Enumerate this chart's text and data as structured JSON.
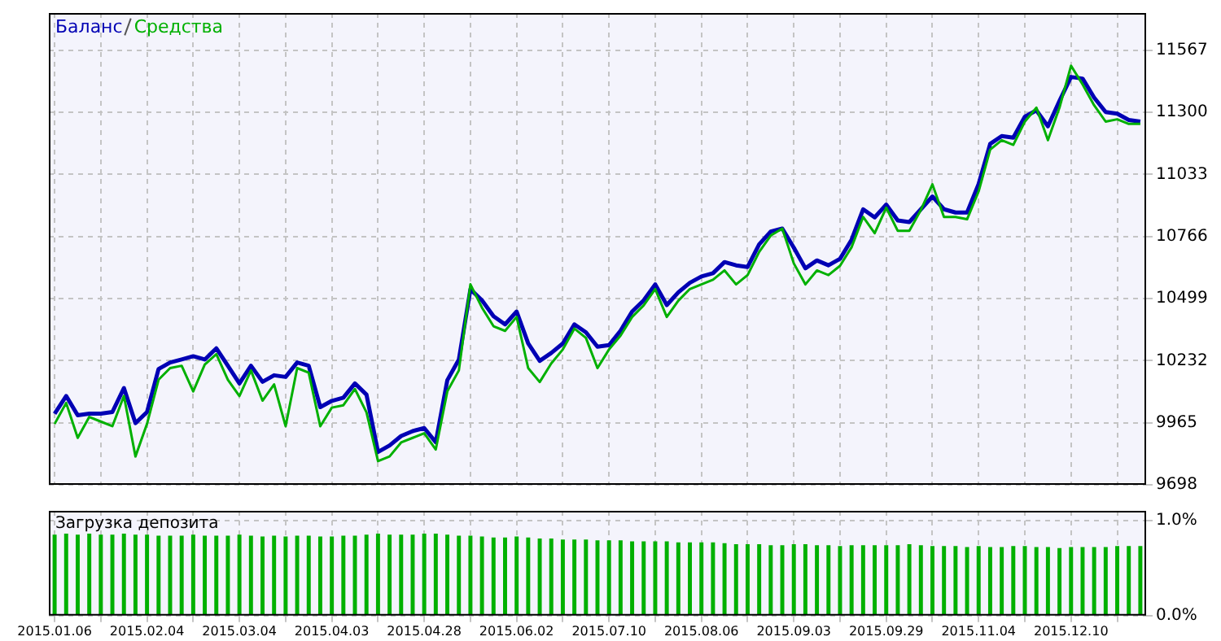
{
  "chart_data": [
    {
      "type": "line",
      "legend": "top left",
      "grid": true,
      "tick_labels": "y",
      "categories": [
        "2015.01.06",
        null,
        null,
        null,
        null,
        null,
        null,
        null,
        "2015.02.04",
        null,
        null,
        null,
        null,
        null,
        null,
        null,
        "2015.03.04",
        null,
        null,
        null,
        null,
        null,
        null,
        null,
        "2015.04.03",
        null,
        null,
        null,
        null,
        null,
        null,
        null,
        "2015.04.28",
        null,
        null,
        null,
        null,
        null,
        null,
        null,
        "2015.06.02",
        null,
        null,
        null,
        null,
        null,
        null,
        null,
        "2015.07.10",
        null,
        null,
        null,
        null,
        null,
        null,
        null,
        "2015.08.06",
        null,
        null,
        null,
        null,
        null,
        null,
        null,
        "2015.09.03",
        null,
        null,
        null,
        null,
        null,
        null,
        null,
        "2015.09.29",
        null,
        null,
        null,
        null,
        null,
        null,
        null,
        "2015.11.04",
        null,
        null,
        null,
        null,
        null,
        null,
        null,
        "2015.12.10",
        null,
        null,
        null,
        null,
        null,
        null
      ],
      "ylim": [
        9698,
        11727
      ],
      "yticks": [
        9698,
        9965,
        10232,
        10499,
        10766,
        11033,
        11300,
        11567
      ],
      "series": [
        {
          "name": "Средства",
          "color": "#00b000",
          "values": [
            9960,
            10050,
            9900,
            9990,
            9970,
            9950,
            10080,
            9820,
            9960,
            10150,
            10200,
            10210,
            10100,
            10215,
            10260,
            10150,
            10080,
            10190,
            10060,
            10130,
            9950,
            10200,
            10180,
            9950,
            10030,
            10040,
            10110,
            10010,
            9800,
            9820,
            9880,
            9900,
            9920,
            9850,
            10100,
            10190,
            10560,
            10460,
            10380,
            10360,
            10420,
            10200,
            10140,
            10220,
            10280,
            10370,
            10330,
            10200,
            10280,
            10340,
            10420,
            10470,
            10540,
            10420,
            10490,
            10540,
            10560,
            10580,
            10620,
            10560,
            10600,
            10700,
            10770,
            10800,
            10650,
            10560,
            10620,
            10600,
            10640,
            10720,
            10850,
            10780,
            10890,
            10790,
            10790,
            10880,
            10990,
            10850,
            10850,
            10840,
            10960,
            11140,
            11180,
            11160,
            11260,
            11320,
            11180,
            11320,
            11500,
            11420,
            11330,
            11260,
            11270,
            11250,
            11250
          ]
        },
        {
          "name": "Баланс",
          "color": "#0000b4",
          "values": [
            10004,
            10080,
            9997,
            10004,
            10004,
            10011,
            10114,
            9963,
            10011,
            10196,
            10224,
            10237,
            10251,
            10237,
            10285,
            10210,
            10134,
            10210,
            10141,
            10169,
            10162,
            10224,
            10210,
            10032,
            10059,
            10073,
            10134,
            10086,
            9839,
            9867,
            9908,
            9929,
            9942,
            9881,
            10148,
            10237,
            10539,
            10491,
            10423,
            10388,
            10443,
            10306,
            10231,
            10265,
            10306,
            10388,
            10354,
            10292,
            10299,
            10361,
            10443,
            10491,
            10560,
            10471,
            10526,
            10567,
            10594,
            10608,
            10656,
            10642,
            10635,
            10732,
            10787,
            10800,
            10718,
            10629,
            10663,
            10642,
            10670,
            10752,
            10883,
            10848,
            10903,
            10835,
            10828,
            10883,
            10938,
            10883,
            10869,
            10869,
            10992,
            11164,
            11198,
            11191,
            11281,
            11308,
            11240,
            11349,
            11452,
            11445,
            11363,
            11301,
            11294,
            11267,
            11260
          ]
        }
      ]
    },
    {
      "type": "bar",
      "title": "Загрузка депозита",
      "grid": true,
      "color": "#00b000",
      "categories": [
        "2015.01.06",
        null,
        null,
        null,
        null,
        null,
        null,
        null,
        "2015.02.04",
        null,
        null,
        null,
        null,
        null,
        null,
        null,
        "2015.03.04",
        null,
        null,
        null,
        null,
        null,
        null,
        null,
        "2015.04.03",
        null,
        null,
        null,
        null,
        null,
        null,
        null,
        "2015.04.28",
        null,
        null,
        null,
        null,
        null,
        null,
        null,
        "2015.06.02",
        null,
        null,
        null,
        null,
        null,
        null,
        null,
        "2015.07.10",
        null,
        null,
        null,
        null,
        null,
        null,
        null,
        "2015.08.06",
        null,
        null,
        null,
        null,
        null,
        null,
        null,
        "2015.09.03",
        null,
        null,
        null,
        null,
        null,
        null,
        null,
        "2015.09.29",
        null,
        null,
        null,
        null,
        null,
        null,
        null,
        "2015.11.04",
        null,
        null,
        null,
        null,
        null,
        null,
        null,
        "2015.12.10",
        null,
        null,
        null,
        null,
        null,
        null
      ],
      "ylim": [
        0,
        1.1
      ],
      "yticks": [
        {
          "value": 0,
          "label": "0.0%"
        },
        {
          "value": 1,
          "label": "1.0%"
        }
      ],
      "values": [
        0.85,
        0.86,
        0.85,
        0.86,
        0.85,
        0.85,
        0.86,
        0.85,
        0.85,
        0.84,
        0.84,
        0.84,
        0.85,
        0.84,
        0.84,
        0.84,
        0.85,
        0.84,
        0.83,
        0.84,
        0.83,
        0.84,
        0.84,
        0.83,
        0.83,
        0.84,
        0.84,
        0.85,
        0.86,
        0.85,
        0.85,
        0.85,
        0.86,
        0.86,
        0.85,
        0.84,
        0.84,
        0.83,
        0.82,
        0.82,
        0.83,
        0.82,
        0.81,
        0.81,
        0.8,
        0.8,
        0.8,
        0.79,
        0.79,
        0.79,
        0.78,
        0.78,
        0.78,
        0.78,
        0.77,
        0.77,
        0.77,
        0.77,
        0.76,
        0.75,
        0.75,
        0.75,
        0.74,
        0.74,
        0.75,
        0.75,
        0.74,
        0.74,
        0.73,
        0.74,
        0.74,
        0.74,
        0.74,
        0.74,
        0.75,
        0.74,
        0.73,
        0.73,
        0.73,
        0.72,
        0.73,
        0.72,
        0.72,
        0.73,
        0.73,
        0.72,
        0.72,
        0.71,
        0.72,
        0.72,
        0.72,
        0.72,
        0.73,
        0.73,
        0.73
      ]
    }
  ]
}
